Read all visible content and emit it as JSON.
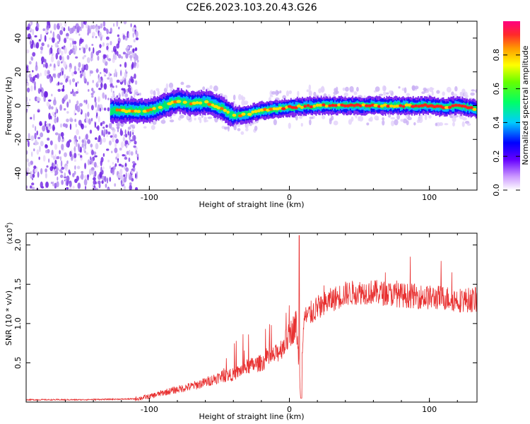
{
  "title": "C2E6.2023.103.20.43.G26",
  "chart_data": [
    {
      "type": "heatmap",
      "xlabel": "Height of straight line (km)",
      "ylabel": "Frequency (Hz)",
      "xlim": [
        -188,
        134
      ],
      "ylim": [
        -50,
        50
      ],
      "xticks": [
        -100,
        0,
        100
      ],
      "xtick_labels": [
        "-100",
        "0",
        "100"
      ],
      "yticks": [
        -40,
        -20,
        0,
        20,
        40
      ],
      "ytick_labels": [
        "-40",
        "-20",
        "0",
        "20",
        "40"
      ],
      "colorbar": {
        "label": "Normalized spectral amplitude",
        "range": [
          0,
          1
        ],
        "ticks": [
          0.0,
          0.2,
          0.4,
          0.6,
          0.8
        ],
        "tick_labels": [
          "0.0",
          "0.2",
          "0.4",
          "0.6",
          "0.8"
        ]
      },
      "noise_region_x": [
        -188,
        -108
      ],
      "ridge": [
        {
          "x": -128,
          "y": -3
        },
        {
          "x": -110,
          "y": -3
        },
        {
          "x": -100,
          "y": -3
        },
        {
          "x": -90,
          "y": 0
        },
        {
          "x": -80,
          "y": 3
        },
        {
          "x": -70,
          "y": 1
        },
        {
          "x": -60,
          "y": 2
        },
        {
          "x": -50,
          "y": -1
        },
        {
          "x": -40,
          "y": -6
        },
        {
          "x": -30,
          "y": -5
        },
        {
          "x": -20,
          "y": -3
        },
        {
          "x": -10,
          "y": -2
        },
        {
          "x": 0,
          "y": -1
        },
        {
          "x": 20,
          "y": 0
        },
        {
          "x": 40,
          "y": 0
        },
        {
          "x": 60,
          "y": 0
        },
        {
          "x": 80,
          "y": 0
        },
        {
          "x": 100,
          "y": 0
        },
        {
          "x": 110,
          "y": -1
        },
        {
          "x": 120,
          "y": 0
        },
        {
          "x": 134,
          "y": -2
        }
      ]
    },
    {
      "type": "line",
      "xlabel": "Height of straight line (km)",
      "ylabel": "SNR (10 * v/v)",
      "scale_label": "(x10",
      "scale_exponent": "4",
      "scale_close": ")",
      "xlim": [
        -188,
        134
      ],
      "ylim": [
        0,
        2.15
      ],
      "xticks": [
        -100,
        0,
        100
      ],
      "xtick_labels": [
        "-100",
        "0",
        "100"
      ],
      "yticks": [
        0.5,
        1.0,
        1.5,
        2.0
      ],
      "ytick_labels": [
        "0.5",
        "1.0",
        "1.5",
        "2.0"
      ],
      "color": "#e83030",
      "series": [
        {
          "name": "SNR",
          "x": [
            -188,
            -150,
            -110,
            -100,
            -90,
            -80,
            -70,
            -60,
            -50,
            -40,
            -30,
            -20,
            -10,
            -5,
            0,
            5,
            8,
            10,
            20,
            30,
            40,
            50,
            60,
            70,
            80,
            90,
            100,
            110,
            120,
            134
          ],
          "y": [
            0.03,
            0.03,
            0.04,
            0.07,
            0.12,
            0.16,
            0.2,
            0.25,
            0.32,
            0.35,
            0.45,
            0.5,
            0.6,
            0.7,
            0.85,
            1.0,
            0.1,
            1.05,
            1.2,
            1.3,
            1.38,
            1.4,
            1.4,
            1.38,
            1.36,
            1.35,
            1.33,
            1.33,
            1.3,
            1.3
          ]
        }
      ]
    }
  ]
}
